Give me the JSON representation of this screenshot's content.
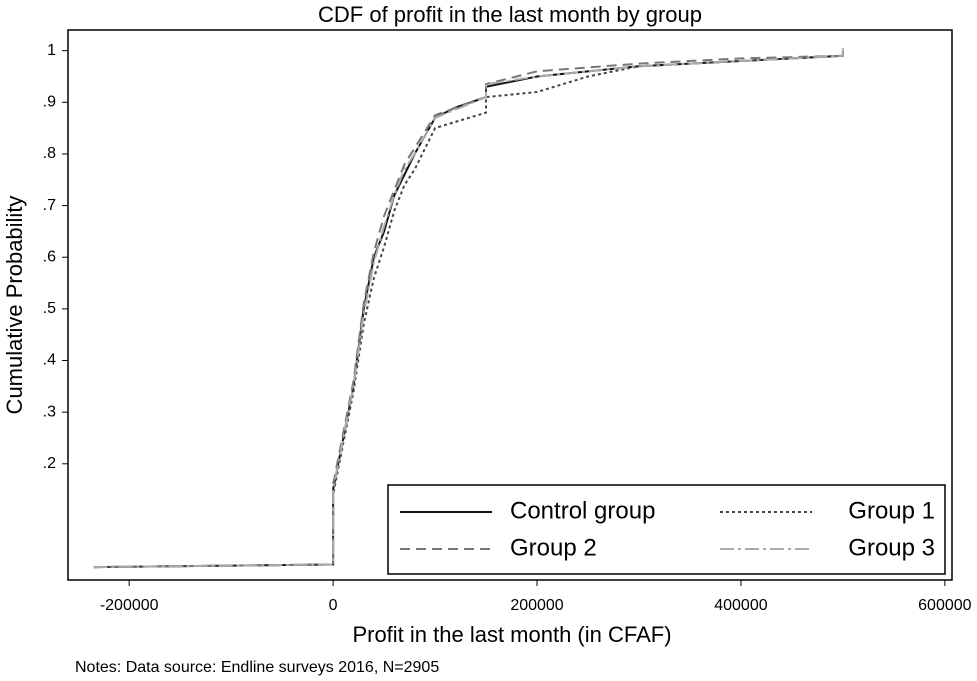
{
  "chart_data": {
    "type": "line",
    "title": "CDF of profit in the last month by group",
    "x_label": "Profit in the last month (in CFAF)",
    "y_label": "Cumulative Probability",
    "note": "Notes: Data source: Endline surveys 2016, N=2905",
    "xlim": [
      -260000,
      607000
    ],
    "ylim": [
      -0.025,
      1.04
    ],
    "xticks": [
      -200000,
      0,
      200000,
      400000,
      600000
    ],
    "yticks": [
      {
        "value": 0.2,
        "label": ".2"
      },
      {
        "value": 0.3,
        "label": ".3"
      },
      {
        "value": 0.4,
        "label": ".4"
      },
      {
        "value": 0.5,
        "label": ".5"
      },
      {
        "value": 0.6,
        "label": ".6"
      },
      {
        "value": 0.7,
        "label": ".7"
      },
      {
        "value": 0.8,
        "label": ".8"
      },
      {
        "value": 0.9,
        "label": ".9"
      },
      1
    ],
    "grid": false,
    "legend": "bottom-right",
    "series": [
      {
        "name": "Control group",
        "color": "#111111",
        "dash": "solid",
        "x": [
          -235000,
          0,
          0,
          10000,
          20000,
          30000,
          40000,
          50000,
          60000,
          70000,
          80000,
          100000,
          120000,
          150000,
          150000,
          200000,
          300000,
          400000,
          500000,
          500000
        ],
        "values": [
          0.0,
          0.005,
          0.15,
          0.25,
          0.35,
          0.5,
          0.6,
          0.65,
          0.72,
          0.76,
          0.8,
          0.87,
          0.89,
          0.91,
          0.93,
          0.95,
          0.97,
          0.98,
          0.99,
          1.0
        ]
      },
      {
        "name": "Group 1",
        "color": "#444444",
        "dash": "dotted",
        "x": [
          -235000,
          0,
          0,
          10000,
          20000,
          30000,
          40000,
          50000,
          60000,
          70000,
          80000,
          100000,
          150000,
          150000,
          200000,
          250000,
          300000,
          400000,
          500000
        ],
        "values": [
          0.0,
          0.005,
          0.14,
          0.24,
          0.34,
          0.47,
          0.56,
          0.62,
          0.69,
          0.74,
          0.77,
          0.85,
          0.88,
          0.91,
          0.92,
          0.95,
          0.97,
          0.98,
          0.99
        ]
      },
      {
        "name": "Group 2",
        "color": "#777777",
        "dash": "dashed",
        "x": [
          -235000,
          0,
          0,
          10000,
          20000,
          30000,
          40000,
          50000,
          60000,
          70000,
          100000,
          150000,
          150000,
          200000,
          300000,
          400000,
          500000
        ],
        "values": [
          0.0,
          0.005,
          0.16,
          0.26,
          0.36,
          0.51,
          0.61,
          0.68,
          0.73,
          0.78,
          0.875,
          0.91,
          0.935,
          0.96,
          0.975,
          0.985,
          0.99
        ]
      },
      {
        "name": "Group 3",
        "color": "#aaaaaa",
        "dash": "dashdot",
        "x": [
          -235000,
          0,
          0,
          10000,
          20000,
          30000,
          40000,
          50000,
          60000,
          70000,
          80000,
          100000,
          150000,
          150000,
          200000,
          300000,
          400000,
          500000,
          500000
        ],
        "values": [
          0.0,
          0.005,
          0.15,
          0.25,
          0.35,
          0.49,
          0.59,
          0.66,
          0.72,
          0.77,
          0.8,
          0.87,
          0.91,
          0.935,
          0.95,
          0.97,
          0.98,
          0.99,
          1.005
        ]
      }
    ]
  }
}
